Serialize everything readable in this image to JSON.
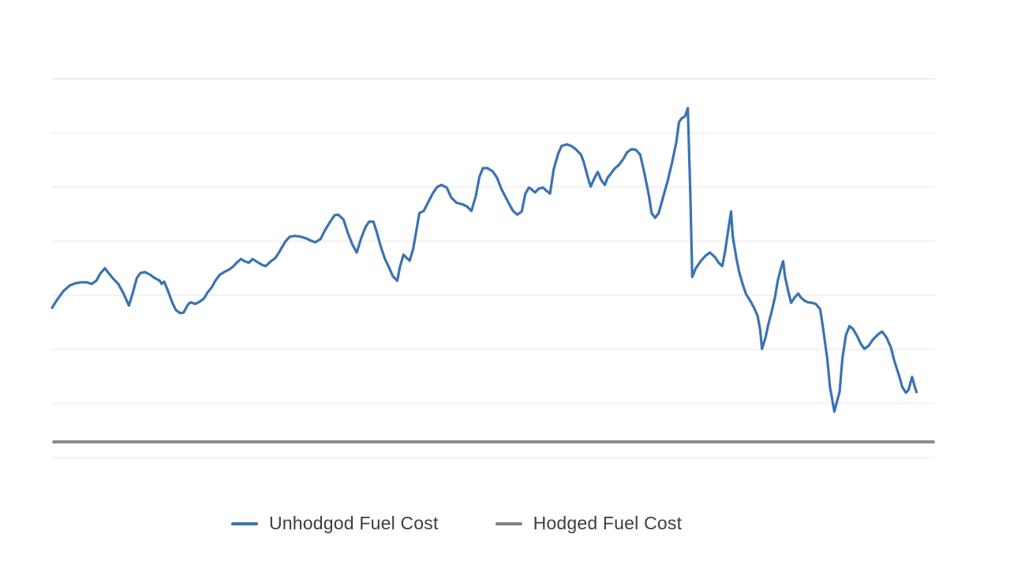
{
  "page": {
    "background": "#ffffff"
  },
  "legend": {
    "items": [
      {
        "label": "Unhodgod Fuel Cost",
        "color": "#3b72b3",
        "series": "unhedged"
      },
      {
        "label": "Hodged Fuel Cost",
        "color": "#828282",
        "series": "hedged"
      }
    ]
  },
  "chart_data": {
    "type": "line",
    "title": "",
    "xlabel": "",
    "ylabel": "",
    "grid": "horizontal-only",
    "legend_position": "bottom",
    "x_axis": {
      "labels_visible": false,
      "range": [
        0,
        100
      ]
    },
    "y_axis": {
      "labels_visible": false,
      "range": [
        0,
        70
      ],
      "gridline_step": 10
    },
    "gridline_color": "#efefef",
    "top_gridline_color": "#e6e6e6",
    "series": [
      {
        "name": "Unhodgod Fuel Cost",
        "color": "#3b72b3",
        "width": 3.2,
        "points": [
          [
            0,
            27.7
          ],
          [
            0.5,
            29
          ],
          [
            1.3,
            30.8
          ],
          [
            2,
            31.8
          ],
          [
            2.6,
            32.2
          ],
          [
            3.3,
            32.4
          ],
          [
            3.9,
            32.4
          ],
          [
            4.5,
            32.1
          ],
          [
            5,
            32.7
          ],
          [
            5.5,
            34.1
          ],
          [
            6,
            35
          ],
          [
            6.3,
            34.3
          ],
          [
            6.9,
            33.1
          ],
          [
            7.5,
            32.1
          ],
          [
            8.1,
            30.3
          ],
          [
            8.7,
            28.1
          ],
          [
            9.1,
            30.2
          ],
          [
            9.6,
            33.2
          ],
          [
            10,
            34.1
          ],
          [
            10.5,
            34.3
          ],
          [
            11.1,
            33.8
          ],
          [
            11.6,
            33.2
          ],
          [
            12.2,
            32.7
          ],
          [
            12.4,
            32.1
          ],
          [
            12.7,
            32.5
          ],
          [
            13.1,
            30.9
          ],
          [
            13.6,
            28.7
          ],
          [
            14,
            27.3
          ],
          [
            14.5,
            26.7
          ],
          [
            14.9,
            26.8
          ],
          [
            15.4,
            28.3
          ],
          [
            15.7,
            28.7
          ],
          [
            16.2,
            28.4
          ],
          [
            16.6,
            28.7
          ],
          [
            17.2,
            29.4
          ],
          [
            17.6,
            30.5
          ],
          [
            18.1,
            31.5
          ],
          [
            18.5,
            32.7
          ],
          [
            19,
            33.8
          ],
          [
            19.6,
            34.4
          ],
          [
            20,
            34.7
          ],
          [
            20.5,
            35.3
          ],
          [
            20.9,
            36
          ],
          [
            21.4,
            36.7
          ],
          [
            21.8,
            36.3
          ],
          [
            22.3,
            36
          ],
          [
            22.7,
            36.7
          ],
          [
            23.2,
            36.2
          ],
          [
            23.8,
            35.6
          ],
          [
            24.2,
            35.4
          ],
          [
            24.8,
            36.3
          ],
          [
            25.3,
            36.9
          ],
          [
            25.8,
            38.2
          ],
          [
            26.4,
            39.9
          ],
          [
            26.9,
            40.8
          ],
          [
            27.5,
            41
          ],
          [
            28.2,
            40.8
          ],
          [
            28.8,
            40.5
          ],
          [
            29.3,
            40.1
          ],
          [
            29.8,
            39.8
          ],
          [
            30.4,
            40.4
          ],
          [
            30.9,
            42
          ],
          [
            31.5,
            43.6
          ],
          [
            32,
            44.8
          ],
          [
            32.4,
            44.9
          ],
          [
            33,
            44
          ],
          [
            33.5,
            41.5
          ],
          [
            34,
            39.4
          ],
          [
            34.5,
            37.9
          ],
          [
            35,
            40.5
          ],
          [
            35.5,
            42.6
          ],
          [
            35.9,
            43.6
          ],
          [
            36.4,
            43.6
          ],
          [
            36.8,
            41.5
          ],
          [
            37.3,
            38.6
          ],
          [
            37.7,
            36.7
          ],
          [
            38.2,
            35
          ],
          [
            38.6,
            33.5
          ],
          [
            39.1,
            32.7
          ],
          [
            39.4,
            35.3
          ],
          [
            39.8,
            37.5
          ],
          [
            40.1,
            37
          ],
          [
            40.5,
            36.4
          ],
          [
            40.9,
            38.6
          ],
          [
            41.3,
            42.3
          ],
          [
            41.6,
            45.2
          ],
          [
            42.1,
            45.6
          ],
          [
            42.5,
            46.9
          ],
          [
            43.1,
            48.8
          ],
          [
            43.6,
            50
          ],
          [
            44.1,
            50.4
          ],
          [
            44.7,
            49.9
          ],
          [
            45.2,
            48.1
          ],
          [
            45.8,
            47.1
          ],
          [
            46.5,
            46.8
          ],
          [
            47,
            46.4
          ],
          [
            47.5,
            45.6
          ],
          [
            48,
            48.4
          ],
          [
            48.4,
            51.9
          ],
          [
            48.8,
            53.5
          ],
          [
            49.3,
            53.5
          ],
          [
            49.9,
            52.9
          ],
          [
            50.4,
            51.7
          ],
          [
            50.9,
            49.6
          ],
          [
            51.6,
            47.4
          ],
          [
            52.2,
            45.6
          ],
          [
            52.7,
            44.9
          ],
          [
            53.2,
            45.5
          ],
          [
            53.6,
            48.8
          ],
          [
            54,
            49.9
          ],
          [
            54.3,
            49.6
          ],
          [
            54.7,
            49
          ],
          [
            55.1,
            49.7
          ],
          [
            55.6,
            49.9
          ],
          [
            56,
            49.3
          ],
          [
            56.4,
            48.8
          ],
          [
            56.8,
            53.2
          ],
          [
            57.3,
            56.1
          ],
          [
            57.7,
            57.6
          ],
          [
            58.3,
            57.9
          ],
          [
            58.8,
            57.6
          ],
          [
            59.3,
            57
          ],
          [
            59.9,
            56
          ],
          [
            60.2,
            54.7
          ],
          [
            60.7,
            51.7
          ],
          [
            61,
            50.1
          ],
          [
            61.4,
            51.6
          ],
          [
            61.8,
            52.8
          ],
          [
            62.2,
            51.3
          ],
          [
            62.6,
            50.4
          ],
          [
            62.9,
            51.7
          ],
          [
            63.3,
            52.5
          ],
          [
            63.7,
            53.4
          ],
          [
            64.2,
            54.1
          ],
          [
            64.7,
            55.2
          ],
          [
            65.1,
            56.4
          ],
          [
            65.6,
            57
          ],
          [
            66.1,
            56.9
          ],
          [
            66.6,
            56
          ],
          [
            67.1,
            52.5
          ],
          [
            67.6,
            48.4
          ],
          [
            67.9,
            45.2
          ],
          [
            68.3,
            44.3
          ],
          [
            68.7,
            45.2
          ],
          [
            69.2,
            48.1
          ],
          [
            69.7,
            51
          ],
          [
            70.2,
            54.4
          ],
          [
            70.7,
            58.3
          ],
          [
            71,
            62
          ],
          [
            71.3,
            62.7
          ],
          [
            71.7,
            63.1
          ],
          [
            72,
            64.6
          ],
          [
            72.3,
            48.1
          ],
          [
            72.5,
            33.4
          ],
          [
            72.9,
            35
          ],
          [
            73.5,
            36.4
          ],
          [
            74,
            37.3
          ],
          [
            74.5,
            37.9
          ],
          [
            75.1,
            37
          ],
          [
            75.5,
            36
          ],
          [
            75.9,
            35.4
          ],
          [
            76.2,
            37.9
          ],
          [
            76.6,
            42.3
          ],
          [
            76.9,
            45.5
          ],
          [
            77.1,
            40.8
          ],
          [
            77.5,
            36.9
          ],
          [
            77.8,
            34.4
          ],
          [
            78.2,
            32.1
          ],
          [
            78.6,
            30.2
          ],
          [
            79.1,
            28.9
          ],
          [
            79.5,
            27.7
          ],
          [
            79.9,
            26.2
          ],
          [
            80.2,
            23.6
          ],
          [
            80.4,
            20.1
          ],
          [
            80.8,
            22.2
          ],
          [
            81.1,
            24.5
          ],
          [
            81.5,
            27
          ],
          [
            81.9,
            29.9
          ],
          [
            82.2,
            32.8
          ],
          [
            82.6,
            35.3
          ],
          [
            82.8,
            36.3
          ],
          [
            83,
            33.5
          ],
          [
            83.4,
            30.6
          ],
          [
            83.7,
            28.6
          ],
          [
            84.1,
            29.6
          ],
          [
            84.5,
            30.3
          ],
          [
            84.8,
            29.6
          ],
          [
            85.2,
            29
          ],
          [
            85.6,
            28.7
          ],
          [
            86.1,
            28.6
          ],
          [
            86.5,
            28.4
          ],
          [
            87,
            27.4
          ],
          [
            87.3,
            24.1
          ],
          [
            87.8,
            18.2
          ],
          [
            88.1,
            13.1
          ],
          [
            88.6,
            8.5
          ],
          [
            88.8,
            9.8
          ],
          [
            89.2,
            12.2
          ],
          [
            89.5,
            18.2
          ],
          [
            89.9,
            22.6
          ],
          [
            90.3,
            24.3
          ],
          [
            90.7,
            23.8
          ],
          [
            91.2,
            22.4
          ],
          [
            91.6,
            21
          ],
          [
            92,
            20.1
          ],
          [
            92.5,
            20.7
          ],
          [
            92.9,
            21.7
          ],
          [
            93.5,
            22.7
          ],
          [
            94,
            23.3
          ],
          [
            94.5,
            22.2
          ],
          [
            95,
            20.4
          ],
          [
            95.4,
            17.8
          ],
          [
            95.9,
            15.3
          ],
          [
            96.3,
            13
          ],
          [
            96.7,
            12
          ],
          [
            97,
            12.5
          ],
          [
            97.4,
            14.9
          ],
          [
            97.7,
            13.1
          ],
          [
            97.9,
            12.1
          ]
        ]
      },
      {
        "name": "Hodged Fuel Cost",
        "color": "#8a8a8a",
        "width": 4,
        "points": [
          [
            0.2,
            2.9
          ],
          [
            99.8,
            2.9
          ]
        ]
      }
    ]
  }
}
